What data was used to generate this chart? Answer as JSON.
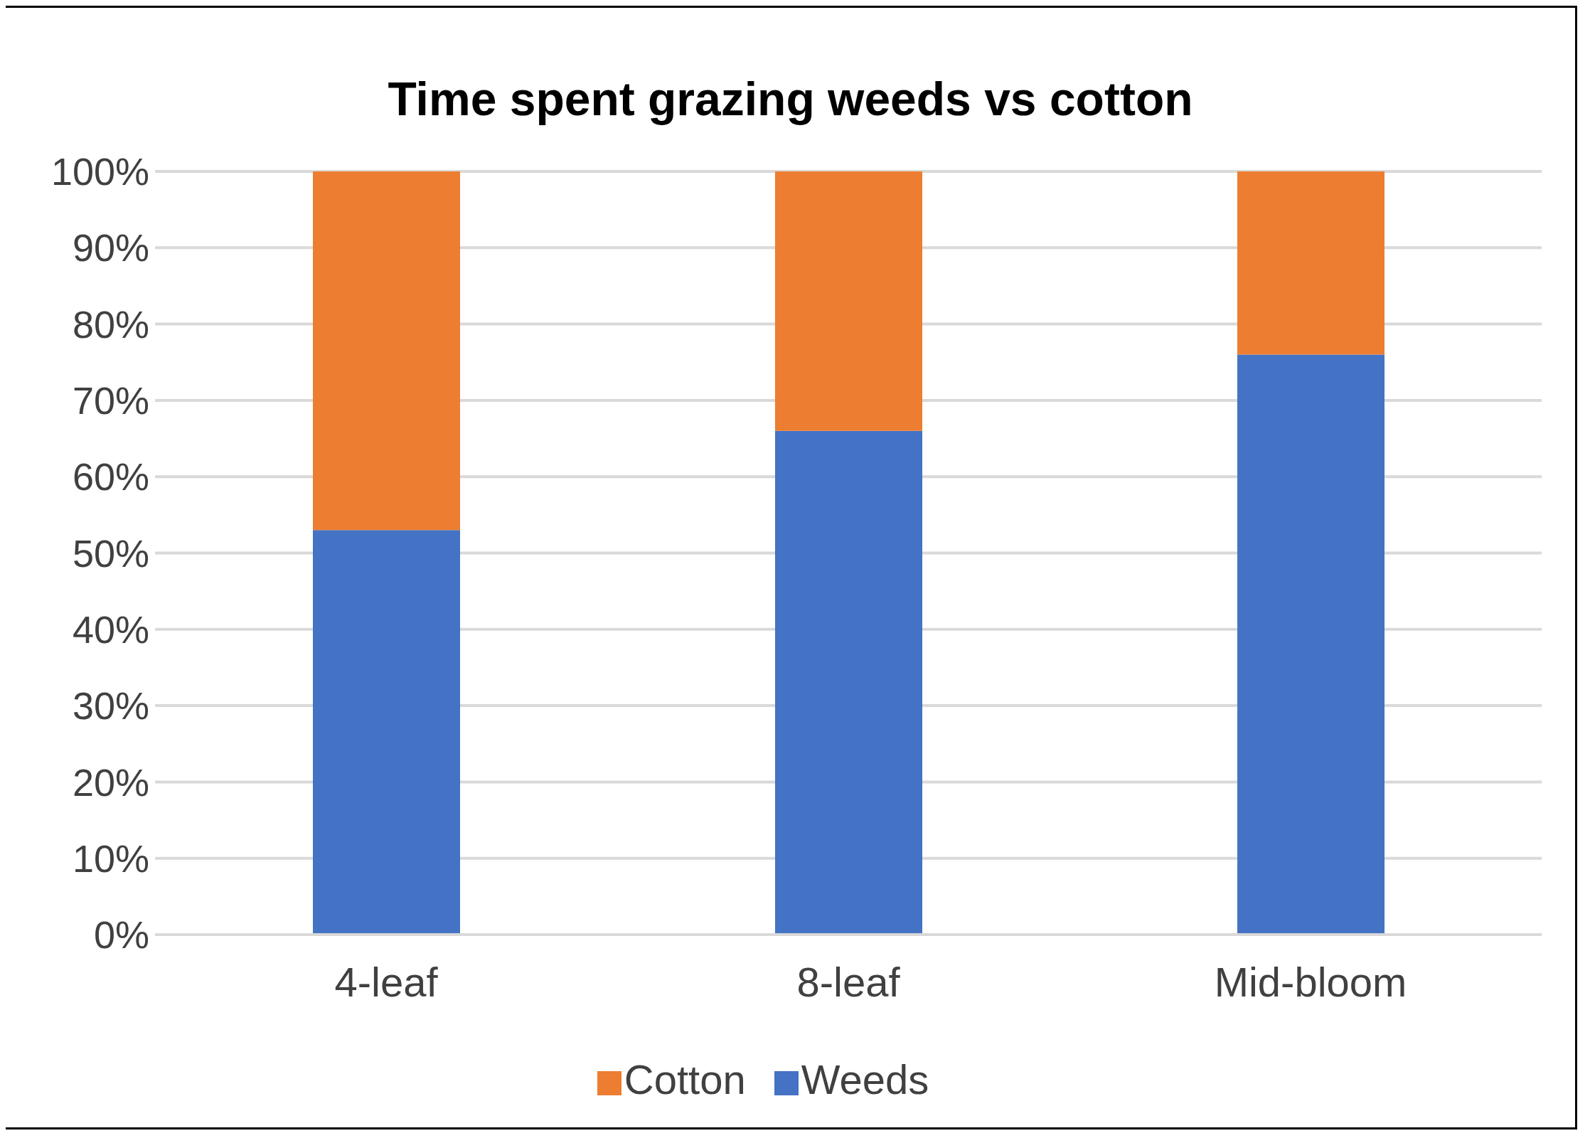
{
  "chart_data": {
    "type": "bar",
    "title": "Time spent grazing weeds vs cotton",
    "categories": [
      "4-leaf",
      "8-leaf",
      "Mid-bloom"
    ],
    "stacked": true,
    "series": [
      {
        "name": "Weeds",
        "color": "#4472c4",
        "values": [
          53,
          66,
          76
        ]
      },
      {
        "name": "Cotton",
        "color": "#ed7d31",
        "values": [
          47,
          34,
          24
        ]
      }
    ],
    "ylim": [
      0,
      100
    ],
    "yticks": [
      {
        "value": 0,
        "label": "0%"
      },
      {
        "value": 10,
        "label": "10%"
      },
      {
        "value": 20,
        "label": "20%"
      },
      {
        "value": 30,
        "label": "30%"
      },
      {
        "value": 40,
        "label": "40%"
      },
      {
        "value": 50,
        "label": "50%"
      },
      {
        "value": 60,
        "label": "60%"
      },
      {
        "value": 70,
        "label": "70%"
      },
      {
        "value": 80,
        "label": "80%"
      },
      {
        "value": 90,
        "label": "90%"
      },
      {
        "value": 100,
        "label": "100%"
      }
    ],
    "grid": "y",
    "legend": "bottom"
  }
}
